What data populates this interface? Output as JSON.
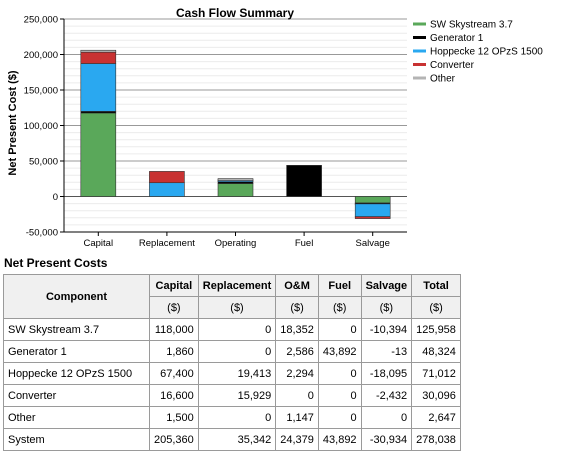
{
  "chart_data": {
    "type": "bar",
    "stacked": true,
    "title": "Cash Flow Summary",
    "ylabel": "Net Present Cost ($)",
    "xlabel": "",
    "ylim": [
      -50000,
      250000
    ],
    "yticks": [
      -50000,
      0,
      50000,
      100000,
      150000,
      200000,
      250000
    ],
    "ytick_labels": [
      "-50,000",
      "0",
      "50,000",
      "100,000",
      "150,000",
      "200,000",
      "250,000"
    ],
    "categories": [
      "Capital",
      "Replacement",
      "Operating",
      "Fuel",
      "Salvage"
    ],
    "grid": true,
    "legend_position": "right",
    "series": [
      {
        "name": "SW Skystream 3.7",
        "color": "#5aa85a",
        "values": [
          118000,
          0,
          18352,
          0,
          -10394
        ]
      },
      {
        "name": "Generator 1",
        "color": "#000000",
        "values": [
          1860,
          0,
          2586,
          43892,
          -13
        ]
      },
      {
        "name": "Hoppecke 12 OPzS 1500",
        "color": "#2aa8f0",
        "values": [
          67400,
          19413,
          2294,
          0,
          -18095
        ]
      },
      {
        "name": "Converter",
        "color": "#c83232",
        "values": [
          16600,
          15929,
          0,
          0,
          -2432
        ]
      },
      {
        "name": "Other",
        "color": "#b4b4b4",
        "values": [
          1500,
          0,
          1147,
          0,
          0
        ]
      }
    ]
  },
  "table": {
    "title": "Net Present Costs",
    "headers": {
      "component": "Component",
      "columns": [
        {
          "label": "Capital",
          "unit": "($)"
        },
        {
          "label": "Replacement",
          "unit": "($)"
        },
        {
          "label": "O&M",
          "unit": "($)"
        },
        {
          "label": "Fuel",
          "unit": "($)"
        },
        {
          "label": "Salvage",
          "unit": "($)"
        },
        {
          "label": "Total",
          "unit": "($)"
        }
      ]
    },
    "rows": [
      {
        "name": "SW Skystream 3.7",
        "values": [
          "118,000",
          "0",
          "18,352",
          "0",
          "-10,394",
          "125,958"
        ]
      },
      {
        "name": "Generator 1",
        "values": [
          "1,860",
          "0",
          "2,586",
          "43,892",
          "-13",
          "48,324"
        ]
      },
      {
        "name": "Hoppecke 12 OPzS 1500",
        "values": [
          "67,400",
          "19,413",
          "2,294",
          "0",
          "-18,095",
          "71,012"
        ]
      },
      {
        "name": "Converter",
        "values": [
          "16,600",
          "15,929",
          "0",
          "0",
          "-2,432",
          "30,096"
        ]
      },
      {
        "name": "Other",
        "values": [
          "1,500",
          "0",
          "1,147",
          "0",
          "0",
          "2,647"
        ]
      },
      {
        "name": "System",
        "values": [
          "205,360",
          "35,342",
          "24,379",
          "43,892",
          "-30,934",
          "278,038"
        ]
      }
    ]
  }
}
